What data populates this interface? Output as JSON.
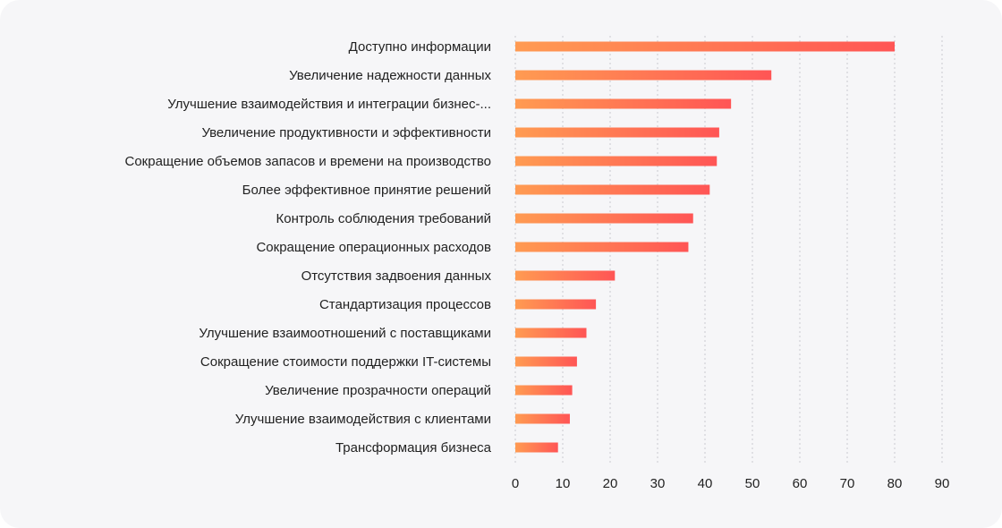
{
  "chart_data": {
    "type": "bar",
    "orientation": "horizontal",
    "title": "",
    "xlabel": "",
    "ylabel": "",
    "categories": [
      "Доступно информации",
      "Увеличение надежности данных",
      "Улучшение взаимодействия и интеграции бизнес-...",
      "Увеличение продуктивности и эффективности",
      "Сокращение объемов запасов и времени на производство",
      "Более эффективное принятие решений",
      "Контроль соблюдения требований",
      "Сокращение операционных расходов",
      "Отсутствия задвоения данных",
      "Стандартизация процессов",
      "Улучшение взаимоотношений с поставщиками",
      "Сокращение стоимости поддержки IT-системы",
      "Увеличение прозрачности операций",
      "Улучшение взаимодействия с клиентами",
      "Трансформация бизнеса"
    ],
    "values": [
      80,
      54,
      45.5,
      43,
      42.5,
      41,
      37.5,
      36.5,
      21,
      17,
      15,
      13,
      12,
      11.5,
      9
    ],
    "xlim": [
      0,
      90
    ],
    "xticks": [
      0,
      10,
      20,
      30,
      40,
      50,
      60,
      70,
      80,
      90
    ],
    "grid": true,
    "legend": "none",
    "colors": {
      "bar_start": "#ff9b52",
      "bar_end": "#ff5555",
      "grid": "#c9c9cf",
      "text": "#222222",
      "background": "#f6f6f8"
    }
  }
}
